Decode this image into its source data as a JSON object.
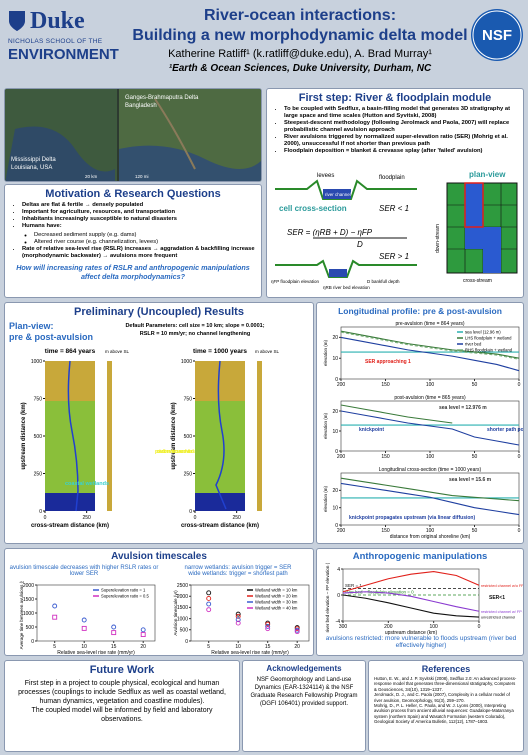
{
  "header": {
    "logo": "Duke",
    "school": "NICHOLAS SCHOOL OF THE",
    "environment": "ENVIRONMENT",
    "title": [
      "River-ocean interactions:",
      "Building a new morphodynamic delta model"
    ],
    "authors": "Katherine Ratliff¹ (k.ratliff@duke.edu), A. Brad Murray¹",
    "affiliation": "¹Earth & Ocean Sciences, Duke University, Durham, NC",
    "nsf": "NSF"
  },
  "photos": {
    "ganges": "Ganges-Brahmaputra Delta",
    "ganges_place": "Bangladesh",
    "mississippi": "Mississippi Delta",
    "mississippi_place": "Louisiana, USA",
    "scale_left": "20 km",
    "scale_right": "120 mi"
  },
  "motivation": {
    "title": "Motivation & Research Questions",
    "bullets": [
      "Deltas are flat & fertile → densely populated",
      "Important for agriculture, resources, and transportation",
      "Inhabitants increasingly susceptible to natural disasters",
      "Humans have:"
    ],
    "sub": [
      "Decreased sediment supply (e.g. dams)",
      "Altered river course (e.g. channelization, levees)"
    ],
    "last": "Rate of relative sea-level rise (RSLR) increases → aggradation & backfilling increase (morphodynamic backwater) → avulsions more frequent",
    "question": "How will increasing rates of RSLR and anthropogenic manipulations affect delta morphodynamics?"
  },
  "first_step": {
    "title": "First step: River & floodplain module",
    "bullets": [
      "To be coupled with Sedflux, a basin-filling model that generates 3D stratigraphy at large space and time scales (Hutton and Syvitski, 2008)",
      "Steepest-descent methodology (following Jerolmack and Paola, 2007) will replace probabilistic channel avulsion approach",
      "River avulsions triggered by normalized super-elevation ratio (SER) (Mohrig et al. 2000), unsuccessful if not shorter than previous path",
      "Floodplain deposition = blanket & crevasse splay (after 'failed' avulsion)"
    ],
    "diagram": {
      "levees": "levees",
      "floodplain": "floodplain",
      "channel": "river channel",
      "cell": "cell cross-section",
      "ser_low": "SER < 1",
      "formula": "SER = (ηRB + D) − ηFP",
      "denominator": "D",
      "ser_high": "SER > 1",
      "eta_fp": "ηFP floodplain elevation",
      "eta_rb": "ηRB river bed elevation",
      "depth": "D bankfull depth",
      "planview": "plan-view",
      "down": "down-stream",
      "cross": "cross-stream"
    }
  },
  "results": {
    "title": "Preliminary (Uncoupled) Results",
    "planview": "Plan-view:",
    "planview_sub": "pre & post-avulsion",
    "params": [
      "Default Parameters: cell size = 10 km; slope = 0.0001;",
      "RSLR = 10 mm/yr; no channel lengthening"
    ],
    "maps": [
      "time = 864 years",
      "time = 1000 years"
    ],
    "colorbar": "m above SL",
    "ylabel": "upstream distance (km)",
    "xlabel": "cross-stream distance (km)",
    "ylim": [
      0,
      1000
    ],
    "yticks": [
      0,
      250,
      500,
      750,
      1000
    ],
    "xlim": [
      0,
      300
    ],
    "xticks": [
      0,
      250
    ],
    "coastal": "coastal wetlands",
    "post": "post-avulsion: new river course and wetlands"
  },
  "longitudinal": {
    "title": "Longitudinal profile: pre & post-avulsion"
  },
  "avulsion": {
    "title": "Avulsion timescales",
    "left_note": "avulsion timescale decreases with higher RSLR rates or lower SER",
    "right_note": [
      "narrow wetlands: avulsion trigger = SER",
      "wide wetlands: trigger = shortest path"
    ]
  },
  "anthro": {
    "title": "Anthropogenic manipulations",
    "caption": "avulsions restricted: more vulnerable to floods upstream (river bed effectively higher)"
  },
  "future": {
    "title": "Future Work",
    "text": "First step in a project to couple physical, ecological and human processes (couplings to include Sedflux as well as coastal wetland, human dynamics, vegetation and coastline modules).",
    "text2": "The coupled model will be informed by field and laboratory observations."
  },
  "ack": {
    "title": "Acknowledgements",
    "text": "NSF Geomorphology and Land-use Dynamics (EAR-1324114) & the NSF Graduate Research Fellowship Program (DGFI 106401) provided support."
  },
  "refs": {
    "title": "References",
    "items": [
      "Hutton, E. W., and J. P. Syvitski (2008), Sedflux 2.0: An advanced process-response model that generates three-dimensional stratigraphy, Computers & Geosciences, 34(10), 1319–1337.",
      "Jerolmack, D. J., and C. Paola (2007), Complexity in a cellular model of river avulsion, Geomorphology, 91(3), 259–270.",
      "Mohrig, D., P. L. Heller, C. Paola, and W. J. Lyons (2000), Interpreting avulsion process from ancient alluvial sequences: Guadalope-Matarranya system (northern Spain) and Wasatch Formation (western Colorado), Geological Society of America Bulletin, 112(12), 1787–1803."
    ]
  },
  "chart_data": [
    {
      "type": "line",
      "title": "pre-avulsion (time = 864 years)",
      "ylabel": "elevation (m)",
      "x": [
        200,
        175,
        150,
        125,
        100,
        75,
        50,
        25,
        0
      ],
      "xlim": [
        200,
        0
      ],
      "xticks": [
        200,
        150,
        100,
        50,
        0
      ],
      "ylim": [
        0,
        25
      ],
      "yticks": [
        0,
        10,
        20
      ],
      "legend": "top-right",
      "series": [
        {
          "name": "sea level (12.96 m)",
          "color": "#2ab0b0",
          "values": [
            12.96,
            12.96,
            12.96,
            12.96,
            12.96,
            12.96,
            12.96,
            12.96,
            12.96
          ]
        },
        {
          "name": "LHS floodplain + wetland",
          "color": "#3a7a3a",
          "values": [
            23,
            21,
            19,
            17,
            15.5,
            14,
            13,
            12,
            10
          ]
        },
        {
          "name": "river bed",
          "color": "#1f3fa0",
          "values": [
            20,
            18,
            16,
            14,
            12.5,
            11,
            9,
            7,
            4
          ]
        },
        {
          "name": "RHS floodplain + wetland",
          "color": "#7ab07a",
          "dash": true,
          "values": [
            22.5,
            20.5,
            18.5,
            16.5,
            15,
            13.5,
            12.5,
            11.5,
            9.5
          ]
        }
      ],
      "annotations": [
        {
          "text": "SER approaching 1",
          "color": "#e0201a"
        }
      ]
    },
    {
      "type": "line",
      "title": "post-avulsion (time = 865 years)",
      "ylabel": "elevation (m)",
      "x": [
        200,
        175,
        150,
        125,
        100,
        75,
        50,
        25,
        0
      ],
      "xlim": [
        200,
        0
      ],
      "xticks": [
        200,
        150,
        100,
        50,
        0
      ],
      "ylim": [
        0,
        25
      ],
      "yticks": [
        0,
        10,
        20
      ],
      "series": [
        {
          "name": "sea level",
          "color": "#2ab0b0",
          "values": [
            12.976,
            12.976,
            12.976,
            12.976,
            12.976,
            12.976,
            12.976,
            12.976,
            12.976
          ]
        },
        {
          "name": "floodplain",
          "color": "#3a7a3a",
          "values": [
            23,
            21,
            19,
            17,
            15.5,
            14,
            null,
            null,
            null
          ]
        },
        {
          "name": "river bed",
          "color": "#1f3fa0",
          "values": [
            20,
            18,
            16,
            14,
            12.5,
            11,
            7,
            5,
            3
          ]
        }
      ],
      "annotations": [
        {
          "text": "sea level = 12.976 m",
          "color": "#333"
        },
        {
          "text": "knickpoint",
          "color": "#1f3fa0"
        },
        {
          "text": "shorter path post-avulsion",
          "color": "#1f3fa0"
        }
      ]
    },
    {
      "type": "line",
      "title": "Longitudinal cross-section (time = 1000 years)",
      "xlabel": "distance from original shoreline (km)",
      "ylabel": "elevation (m)",
      "x": [
        200,
        175,
        150,
        125,
        100,
        75,
        50,
        25,
        0
      ],
      "xlim": [
        200,
        0
      ],
      "xticks": [
        200,
        150,
        100,
        50,
        0
      ],
      "ylim": [
        0,
        30
      ],
      "yticks": [
        0,
        10,
        20
      ],
      "series": [
        {
          "name": "sea level",
          "color": "#2ab0b0",
          "values": [
            15.6,
            15.6,
            15.6,
            15.6,
            15.6,
            15.6,
            15.6,
            15.6,
            15.6
          ]
        },
        {
          "name": "floodplain",
          "color": "#3a7a3a",
          "values": [
            27,
            25,
            23,
            21,
            19,
            17,
            16,
            15,
            14
          ]
        },
        {
          "name": "river bed",
          "color": "#1f3fa0",
          "values": [
            24,
            22,
            20,
            18,
            16,
            13,
            10,
            8,
            6
          ]
        }
      ],
      "annotations": [
        {
          "text": "sea level = 15.6 m",
          "color": "#333"
        },
        {
          "text": "knickpoint propagates upstream (via linear diffusion)",
          "color": "#1f3fa0"
        }
      ]
    },
    {
      "type": "scatter",
      "xlabel": "Relative sea-level rise rate (mm/yr)",
      "ylabel": "Average time between avulsions (yr)",
      "x": [
        5,
        10,
        15,
        20
      ],
      "xlim": [
        2,
        22
      ],
      "xticks": [
        5,
        10,
        15,
        20
      ],
      "ylim": [
        0,
        2000
      ],
      "yticks": [
        0,
        500,
        1000,
        1500,
        2000
      ],
      "legend": "top-right",
      "series": [
        {
          "name": "Superelevation ratio = 1",
          "color": "#3a5bd0",
          "marker": "circle",
          "values": [
            1250,
            750,
            500,
            400
          ]
        },
        {
          "name": "Superelevation ratio = 0.5",
          "color": "#d030c0",
          "marker": "square",
          "values": [
            850,
            450,
            300,
            230
          ]
        }
      ]
    },
    {
      "type": "scatter",
      "xlabel": "Relative sea-level rise rate (mm/yr)",
      "ylabel": "Avulsion timescale (yr)",
      "x": [
        5,
        10,
        15,
        20
      ],
      "xlim": [
        2,
        22
      ],
      "xticks": [
        5,
        10,
        15,
        20
      ],
      "ylim": [
        0,
        2500
      ],
      "yticks": [
        0,
        500,
        1000,
        1500,
        2000,
        2500
      ],
      "legend": "top-right",
      "series": [
        {
          "name": "Wetland width = 10 km",
          "color": "#111111",
          "marker": "circle",
          "values": [
            2150,
            1200,
            800,
            600
          ]
        },
        {
          "name": "Wetland width = 20 km",
          "color": "#e0201a",
          "marker": "circle",
          "values": [
            1900,
            1100,
            750,
            550
          ]
        },
        {
          "name": "Wetland width = 30 km",
          "color": "#3a5bd0",
          "marker": "circle",
          "values": [
            1650,
            950,
            650,
            480
          ]
        },
        {
          "name": "Wetland width = 40 km",
          "color": "#d030c0",
          "marker": "circle",
          "values": [
            1400,
            800,
            550,
            420
          ]
        }
      ]
    },
    {
      "type": "line",
      "xlabel": "upstream distance (km)",
      "ylabel": "river bed elevation − FP elevation (m)",
      "x": [
        300,
        250,
        200,
        150,
        100,
        50,
        0
      ],
      "xlim": [
        300,
        0
      ],
      "xticks": [
        300,
        200,
        100,
        0
      ],
      "ylim": [
        -4,
        4
      ],
      "yticks": [
        -4,
        0,
        4
      ],
      "hlines": [
        {
          "value": 0,
          "color": "#2a8a2a",
          "label": "river bed – floodplain elevation = 0"
        },
        {
          "value": 1,
          "color": "#111",
          "label": "SER = 1"
        }
      ],
      "labels": "inline",
      "series": [
        {
          "name": "restricted channel w/o FP deposition",
          "color": "#e0201a",
          "values": [
            0.5,
            1.5,
            2.5,
            3.2,
            3.6,
            3.0,
            1.5
          ]
        },
        {
          "name": "restricted channel w/ FP deposition",
          "color": "#8a3ad0",
          "values": [
            0.3,
            0.5,
            0.3,
            -0.2,
            -1,
            -1.8,
            -2.5
          ]
        },
        {
          "name": "unrestricted channel",
          "color": "#111111",
          "values": [
            0,
            -0.5,
            -1.2,
            -2,
            -2.8,
            -3.2,
            -3.4
          ]
        }
      ],
      "annotations": [
        {
          "text": "SER<1",
          "color": "#111"
        }
      ]
    }
  ]
}
